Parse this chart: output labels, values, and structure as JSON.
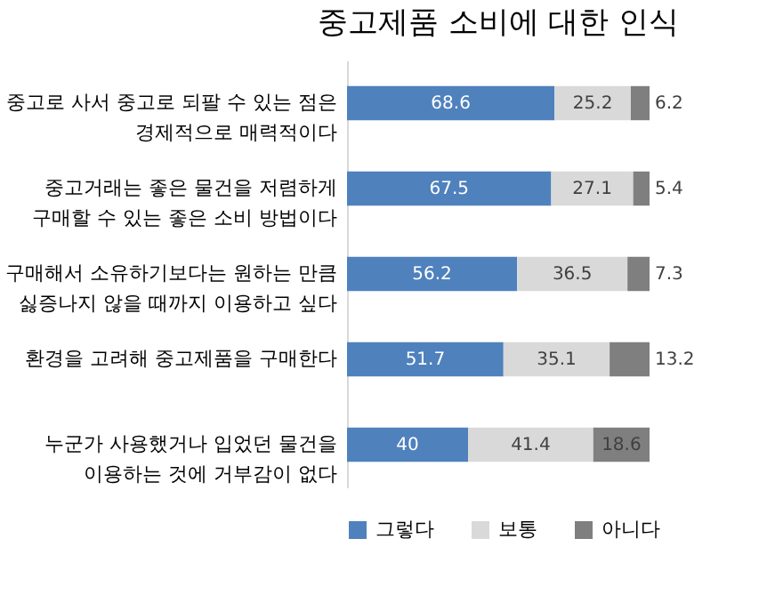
{
  "chart_data": {
    "type": "bar",
    "orientation": "horizontal",
    "stacked": true,
    "title": "중고제품 소비에 대한 인식",
    "categories": [
      "중고로 사서 중고로 되팔 수 있는 점은\n경제적으로 매력적이다",
      "중고거래는 좋은 물건을 저렴하게\n구매할 수 있는 좋은 소비 방법이다",
      "구매해서 소유하기보다는 원하는 만큼\n싫증나지 않을 때까지 이용하고 싶다",
      "환경을 고려해 중고제품을 구매한다",
      "누군가 사용했거나 입었던 물건을\n이용하는 것에 거부감이 없다"
    ],
    "series": [
      {
        "name": "그렇다",
        "color": "#4f81bd",
        "values": [
          68.6,
          67.5,
          56.2,
          51.7,
          40
        ]
      },
      {
        "name": "보통",
        "color": "#d9d9d9",
        "values": [
          25.2,
          27.1,
          36.5,
          35.1,
          41.4
        ]
      },
      {
        "name": "아니다",
        "color": "#7f7f7f",
        "values": [
          6.2,
          5.4,
          7.3,
          13.2,
          18.6
        ]
      }
    ],
    "data_labels": true,
    "legend": "bottom",
    "grid": false
  }
}
